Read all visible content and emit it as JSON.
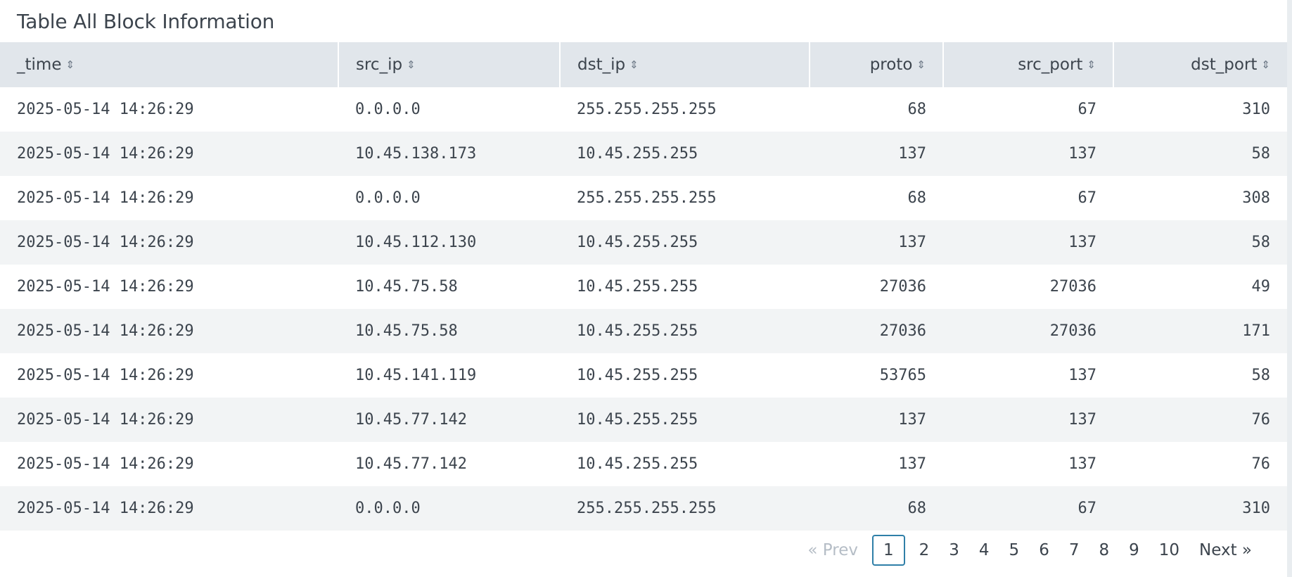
{
  "panel": {
    "title": "Table All Block Information"
  },
  "table": {
    "columns": [
      {
        "label": "_time",
        "align": "left"
      },
      {
        "label": "src_ip",
        "align": "left"
      },
      {
        "label": "dst_ip",
        "align": "left"
      },
      {
        "label": "proto",
        "align": "right"
      },
      {
        "label": "src_port",
        "align": "right"
      },
      {
        "label": "dst_port",
        "align": "right"
      }
    ],
    "rows": [
      [
        "2025-05-14 14:26:29",
        "0.0.0.0",
        "255.255.255.255",
        "68",
        "67",
        "310"
      ],
      [
        "2025-05-14 14:26:29",
        "10.45.138.173",
        "10.45.255.255",
        "137",
        "137",
        "58"
      ],
      [
        "2025-05-14 14:26:29",
        "0.0.0.0",
        "255.255.255.255",
        "68",
        "67",
        "308"
      ],
      [
        "2025-05-14 14:26:29",
        "10.45.112.130",
        "10.45.255.255",
        "137",
        "137",
        "58"
      ],
      [
        "2025-05-14 14:26:29",
        "10.45.75.58",
        "10.45.255.255",
        "27036",
        "27036",
        "49"
      ],
      [
        "2025-05-14 14:26:29",
        "10.45.75.58",
        "10.45.255.255",
        "27036",
        "27036",
        "171"
      ],
      [
        "2025-05-14 14:26:29",
        "10.45.141.119",
        "10.45.255.255",
        "53765",
        "137",
        "58"
      ],
      [
        "2025-05-14 14:26:29",
        "10.45.77.142",
        "10.45.255.255",
        "137",
        "137",
        "76"
      ],
      [
        "2025-05-14 14:26:29",
        "10.45.77.142",
        "10.45.255.255",
        "137",
        "137",
        "76"
      ],
      [
        "2025-05-14 14:26:29",
        "0.0.0.0",
        "255.255.255.255",
        "68",
        "67",
        "310"
      ]
    ]
  },
  "pagination": {
    "prev_label": "« Prev",
    "next_label": "Next »",
    "pages": [
      "1",
      "2",
      "3",
      "4",
      "5",
      "6",
      "7",
      "8",
      "9",
      "10"
    ],
    "current_page": "1"
  },
  "icons": {
    "sort": "sort-icon"
  },
  "colors": {
    "header_bg": "#e1e6eb",
    "stripe_bg": "#f2f4f5",
    "active_page_border": "#2f7fa8",
    "text": "#3c444d"
  }
}
